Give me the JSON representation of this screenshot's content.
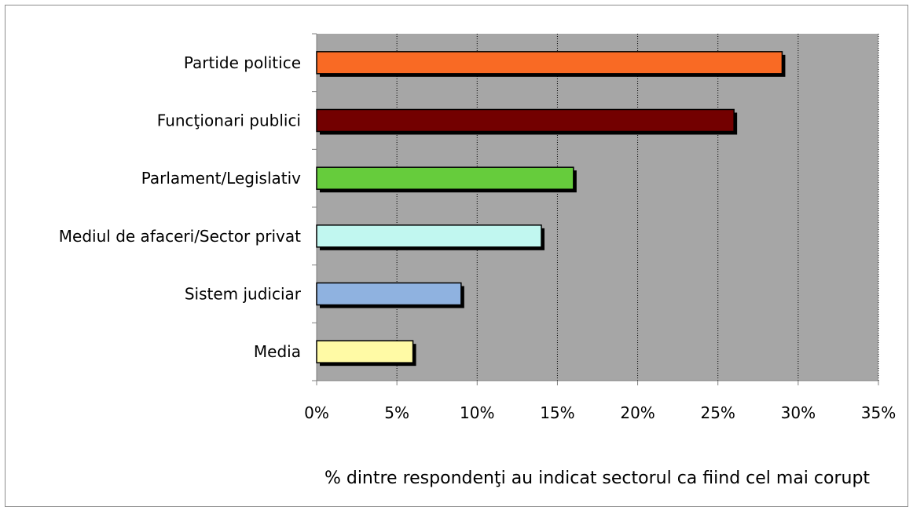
{
  "chart_data": {
    "type": "bar",
    "orientation": "horizontal",
    "title": "",
    "xlabel": "% dintre respondenţi au indicat sectorul ca fiind cel mai corupt",
    "ylabel": "",
    "xlim": [
      0,
      35
    ],
    "x_ticks": [
      "0%",
      "5%",
      "10%",
      "15%",
      "20%",
      "25%",
      "30%",
      "35%"
    ],
    "grid": "vertical dashed",
    "plot_background": "#a6a6a6",
    "categories": [
      "Partide politice",
      "Funcţionari publici",
      "Parlament/Legislativ",
      "Mediul de afaceri/Sector privat",
      "Sistem judiciar",
      "Media"
    ],
    "values": [
      29,
      26,
      16,
      14,
      9,
      6
    ],
    "colors": [
      "#f96a24",
      "#730000",
      "#66cc3c",
      "#c1f7f0",
      "#8fb2e0",
      "#fffaa5"
    ]
  }
}
